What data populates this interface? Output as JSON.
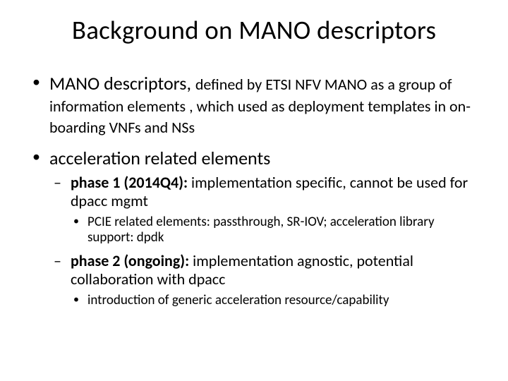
{
  "title": "Background on MANO descriptors",
  "bullets": [
    {
      "lead": "MANO descriptors, ",
      "tail": "defined by ETSI NFV MANO as a group of information elements , which used as deployment templates in on-boarding VNFs and NSs"
    },
    {
      "lead": "acceleration related elements",
      "tail": "",
      "sub": [
        {
          "bold": "phase 1 (2014Q4): ",
          "rest": "implementation specific, cannot be used for dpacc mgmt",
          "sub": [
            {
              "text": "PCIE related elements: passthrough, SR-IOV; acceleration library support: dpdk"
            }
          ]
        },
        {
          "bold": "phase 2 (ongoing): ",
          "rest": "implementation agnostic, potential collaboration with dpacc",
          "sub": [
            {
              "text": "introduction of generic acceleration resource/capability"
            }
          ]
        }
      ]
    }
  ]
}
